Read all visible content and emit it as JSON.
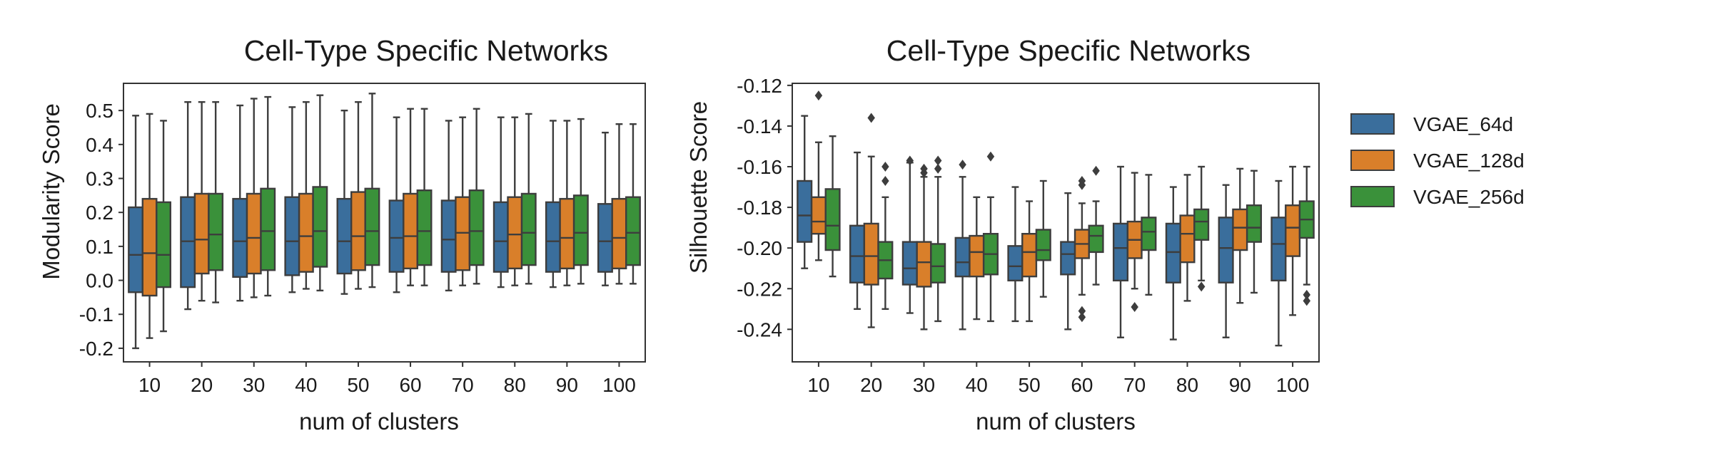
{
  "chart_data": [
    {
      "type": "box",
      "title": "Cell-Type Specific Networks",
      "xlabel": "num of clusters",
      "ylabel": "Modularity Score",
      "ylim": [
        -0.24,
        0.58
      ],
      "yticks": [
        -0.2,
        -0.1,
        0.0,
        0.1,
        0.2,
        0.3,
        0.4,
        0.5
      ],
      "ytick_labels": [
        "-0.2",
        "-0.1",
        "0.0",
        "0.1",
        "0.2",
        "0.3",
        "0.4",
        "0.5"
      ],
      "categories": [
        "10",
        "20",
        "30",
        "40",
        "50",
        "60",
        "70",
        "80",
        "90",
        "100"
      ],
      "grid": false,
      "series": [
        {
          "name": "VGAE_64d",
          "color": "#3a6e9c",
          "boxes": [
            {
              "whislo": -0.2,
              "q1": -0.035,
              "med": 0.075,
              "q3": 0.215,
              "whishi": 0.485
            },
            {
              "whislo": -0.085,
              "q1": -0.02,
              "med": 0.115,
              "q3": 0.245,
              "whishi": 0.525
            },
            {
              "whislo": -0.06,
              "q1": 0.01,
              "med": 0.115,
              "q3": 0.24,
              "whishi": 0.515
            },
            {
              "whislo": -0.035,
              "q1": 0.015,
              "med": 0.115,
              "q3": 0.245,
              "whishi": 0.51
            },
            {
              "whislo": -0.04,
              "q1": 0.02,
              "med": 0.115,
              "q3": 0.24,
              "whishi": 0.5
            },
            {
              "whislo": -0.035,
              "q1": 0.025,
              "med": 0.125,
              "q3": 0.235,
              "whishi": 0.48
            },
            {
              "whislo": -0.03,
              "q1": 0.025,
              "med": 0.12,
              "q3": 0.235,
              "whishi": 0.47
            },
            {
              "whislo": -0.02,
              "q1": 0.025,
              "med": 0.115,
              "q3": 0.23,
              "whishi": 0.48
            },
            {
              "whislo": -0.02,
              "q1": 0.025,
              "med": 0.115,
              "q3": 0.23,
              "whishi": 0.47
            },
            {
              "whislo": -0.015,
              "q1": 0.025,
              "med": 0.115,
              "q3": 0.225,
              "whishi": 0.435
            }
          ]
        },
        {
          "name": "VGAE_128d",
          "color": "#d97f2a",
          "boxes": [
            {
              "whislo": -0.17,
              "q1": -0.045,
              "med": 0.08,
              "q3": 0.24,
              "whishi": 0.49
            },
            {
              "whislo": -0.06,
              "q1": 0.02,
              "med": 0.12,
              "q3": 0.255,
              "whishi": 0.525
            },
            {
              "whislo": -0.05,
              "q1": 0.02,
              "med": 0.125,
              "q3": 0.255,
              "whishi": 0.535
            },
            {
              "whislo": -0.025,
              "q1": 0.025,
              "med": 0.13,
              "q3": 0.255,
              "whishi": 0.525
            },
            {
              "whislo": -0.025,
              "q1": 0.03,
              "med": 0.13,
              "q3": 0.26,
              "whishi": 0.525
            },
            {
              "whislo": -0.015,
              "q1": 0.035,
              "med": 0.13,
              "q3": 0.255,
              "whishi": 0.505
            },
            {
              "whislo": -0.015,
              "q1": 0.03,
              "med": 0.14,
              "q3": 0.245,
              "whishi": 0.48
            },
            {
              "whislo": -0.015,
              "q1": 0.035,
              "med": 0.135,
              "q3": 0.245,
              "whishi": 0.48
            },
            {
              "whislo": -0.015,
              "q1": 0.035,
              "med": 0.125,
              "q3": 0.24,
              "whishi": 0.47
            },
            {
              "whislo": -0.01,
              "q1": 0.035,
              "med": 0.125,
              "q3": 0.24,
              "whishi": 0.46
            }
          ]
        },
        {
          "name": "VGAE_256d",
          "color": "#3a913a",
          "boxes": [
            {
              "whislo": -0.15,
              "q1": -0.02,
              "med": 0.075,
              "q3": 0.23,
              "whishi": 0.47
            },
            {
              "whislo": -0.065,
              "q1": 0.03,
              "med": 0.135,
              "q3": 0.255,
              "whishi": 0.525
            },
            {
              "whislo": -0.045,
              "q1": 0.03,
              "med": 0.145,
              "q3": 0.27,
              "whishi": 0.54
            },
            {
              "whislo": -0.03,
              "q1": 0.04,
              "med": 0.145,
              "q3": 0.275,
              "whishi": 0.545
            },
            {
              "whislo": -0.02,
              "q1": 0.045,
              "med": 0.145,
              "q3": 0.27,
              "whishi": 0.55
            },
            {
              "whislo": -0.015,
              "q1": 0.045,
              "med": 0.145,
              "q3": 0.265,
              "whishi": 0.505
            },
            {
              "whislo": -0.01,
              "q1": 0.045,
              "med": 0.145,
              "q3": 0.265,
              "whishi": 0.505
            },
            {
              "whislo": -0.01,
              "q1": 0.045,
              "med": 0.14,
              "q3": 0.255,
              "whishi": 0.49
            },
            {
              "whislo": -0.01,
              "q1": 0.045,
              "med": 0.14,
              "q3": 0.25,
              "whishi": 0.475
            },
            {
              "whislo": -0.01,
              "q1": 0.045,
              "med": 0.14,
              "q3": 0.245,
              "whishi": 0.46
            }
          ]
        }
      ]
    },
    {
      "type": "box",
      "title": "Cell-Type Specific Networks",
      "xlabel": "num of clusters",
      "ylabel": "Silhouette Score",
      "ylim": [
        -0.256,
        -0.119
      ],
      "yticks": [
        -0.24,
        -0.22,
        -0.2,
        -0.18,
        -0.16,
        -0.14,
        -0.12
      ],
      "ytick_labels": [
        "-0.24",
        "-0.22",
        "-0.20",
        "-0.18",
        "-0.16",
        "-0.14",
        "-0.12"
      ],
      "categories": [
        "10",
        "20",
        "30",
        "40",
        "50",
        "60",
        "70",
        "80",
        "90",
        "100"
      ],
      "grid": false,
      "legend": "right",
      "series": [
        {
          "name": "VGAE_64d",
          "color": "#3a6e9c",
          "boxes": [
            {
              "whislo": -0.21,
              "q1": -0.197,
              "med": -0.184,
              "q3": -0.167,
              "whishi": -0.135,
              "fliers": []
            },
            {
              "whislo": -0.23,
              "q1": -0.217,
              "med": -0.204,
              "q3": -0.189,
              "whishi": -0.153,
              "fliers": []
            },
            {
              "whislo": -0.232,
              "q1": -0.218,
              "med": -0.21,
              "q3": -0.197,
              "whishi": -0.158,
              "fliers": [
                -0.157
              ]
            },
            {
              "whislo": -0.24,
              "q1": -0.214,
              "med": -0.207,
              "q3": -0.195,
              "whishi": -0.165,
              "fliers": [
                -0.159
              ]
            },
            {
              "whislo": -0.236,
              "q1": -0.216,
              "med": -0.209,
              "q3": -0.199,
              "whishi": -0.17,
              "fliers": []
            },
            {
              "whislo": -0.24,
              "q1": -0.213,
              "med": -0.203,
              "q3": -0.197,
              "whishi": -0.173,
              "fliers": []
            },
            {
              "whislo": -0.244,
              "q1": -0.216,
              "med": -0.2,
              "q3": -0.188,
              "whishi": -0.16,
              "fliers": []
            },
            {
              "whislo": -0.245,
              "q1": -0.217,
              "med": -0.202,
              "q3": -0.188,
              "whishi": -0.17,
              "fliers": []
            },
            {
              "whislo": -0.244,
              "q1": -0.217,
              "med": -0.2,
              "q3": -0.185,
              "whishi": -0.169,
              "fliers": []
            },
            {
              "whislo": -0.248,
              "q1": -0.216,
              "med": -0.198,
              "q3": -0.185,
              "whishi": -0.167,
              "fliers": []
            }
          ]
        },
        {
          "name": "VGAE_128d",
          "color": "#d97f2a",
          "boxes": [
            {
              "whislo": -0.206,
              "q1": -0.193,
              "med": -0.187,
              "q3": -0.175,
              "whishi": -0.148,
              "fliers": [
                -0.125
              ]
            },
            {
              "whislo": -0.239,
              "q1": -0.218,
              "med": -0.204,
              "q3": -0.188,
              "whishi": -0.155,
              "fliers": [
                -0.136
              ]
            },
            {
              "whislo": -0.24,
              "q1": -0.219,
              "med": -0.207,
              "q3": -0.197,
              "whishi": -0.165,
              "fliers": [
                -0.163,
                -0.161
              ]
            },
            {
              "whislo": -0.235,
              "q1": -0.214,
              "med": -0.202,
              "q3": -0.194,
              "whishi": -0.175,
              "fliers": []
            },
            {
              "whislo": -0.236,
              "q1": -0.214,
              "med": -0.202,
              "q3": -0.193,
              "whishi": -0.177,
              "fliers": []
            },
            {
              "whislo": -0.223,
              "q1": -0.205,
              "med": -0.198,
              "q3": -0.191,
              "whishi": -0.178,
              "fliers": [
                -0.234,
                -0.231,
                -0.169,
                -0.167
              ]
            },
            {
              "whislo": -0.22,
              "q1": -0.205,
              "med": -0.196,
              "q3": -0.187,
              "whishi": -0.163,
              "fliers": [
                -0.229
              ]
            },
            {
              "whislo": -0.226,
              "q1": -0.207,
              "med": -0.193,
              "q3": -0.184,
              "whishi": -0.164,
              "fliers": []
            },
            {
              "whislo": -0.227,
              "q1": -0.201,
              "med": -0.19,
              "q3": -0.181,
              "whishi": -0.161,
              "fliers": []
            },
            {
              "whislo": -0.233,
              "q1": -0.204,
              "med": -0.19,
              "q3": -0.179,
              "whishi": -0.16,
              "fliers": []
            }
          ]
        },
        {
          "name": "VGAE_256d",
          "color": "#3a913a",
          "boxes": [
            {
              "whislo": -0.214,
              "q1": -0.201,
              "med": -0.189,
              "q3": -0.171,
              "whishi": -0.145,
              "fliers": []
            },
            {
              "whislo": -0.23,
              "q1": -0.215,
              "med": -0.206,
              "q3": -0.197,
              "whishi": -0.175,
              "fliers": [
                -0.167,
                -0.16
              ]
            },
            {
              "whislo": -0.236,
              "q1": -0.217,
              "med": -0.209,
              "q3": -0.198,
              "whishi": -0.165,
              "fliers": [
                -0.161,
                -0.157
              ]
            },
            {
              "whislo": -0.236,
              "q1": -0.213,
              "med": -0.203,
              "q3": -0.193,
              "whishi": -0.175,
              "fliers": [
                -0.155
              ]
            },
            {
              "whislo": -0.224,
              "q1": -0.206,
              "med": -0.201,
              "q3": -0.191,
              "whishi": -0.167,
              "fliers": []
            },
            {
              "whislo": -0.218,
              "q1": -0.202,
              "med": -0.194,
              "q3": -0.189,
              "whishi": -0.177,
              "fliers": [
                -0.162
              ]
            },
            {
              "whislo": -0.223,
              "q1": -0.201,
              "med": -0.192,
              "q3": -0.185,
              "whishi": -0.164,
              "fliers": []
            },
            {
              "whislo": -0.216,
              "q1": -0.196,
              "med": -0.187,
              "q3": -0.181,
              "whishi": -0.16,
              "fliers": [
                -0.219
              ]
            },
            {
              "whislo": -0.222,
              "q1": -0.197,
              "med": -0.19,
              "q3": -0.179,
              "whishi": -0.162,
              "fliers": []
            },
            {
              "whislo": -0.218,
              "q1": -0.195,
              "med": -0.186,
              "q3": -0.177,
              "whishi": -0.16,
              "fliers": [
                -0.226,
                -0.223
              ]
            }
          ]
        }
      ]
    }
  ]
}
